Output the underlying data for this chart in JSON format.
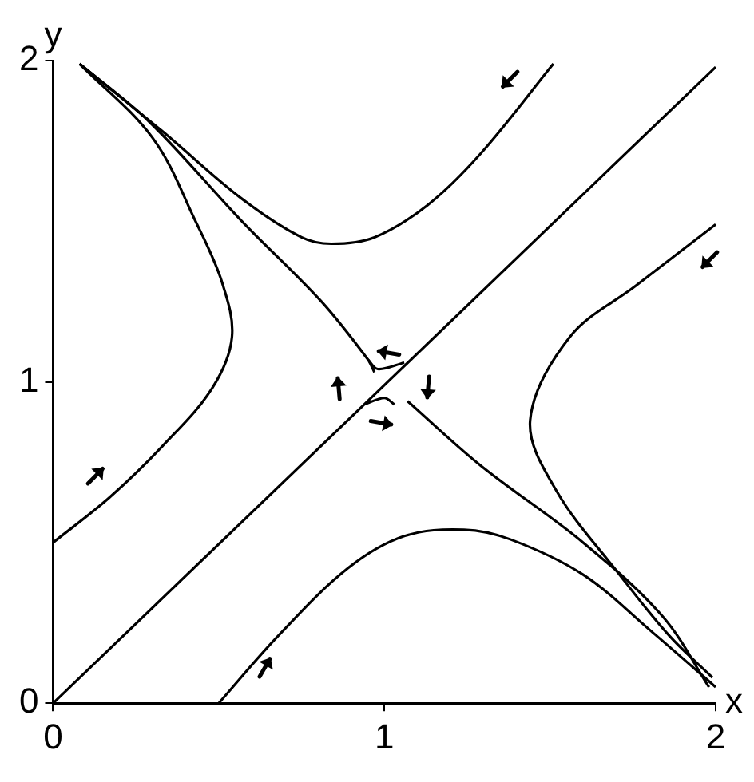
{
  "chart_data": {
    "type": "line",
    "xlabel": "x",
    "ylabel": "y",
    "xlim": [
      0,
      2
    ],
    "ylim": [
      0,
      2
    ],
    "xticks": [
      0,
      1,
      2
    ],
    "yticks": [
      0,
      1,
      2
    ],
    "grid": false,
    "legend": false,
    "marker": "none",
    "line_style": "solid",
    "series": [
      {
        "color": "#000000",
        "x": [
          0,
          2
        ],
        "values": [
          0,
          1.98
        ]
      },
      {
        "color": "#000000",
        "x": [
          0.08,
          0.29,
          0.57,
          0.81,
          0.95,
          0.97
        ],
        "values": [
          1.99,
          1.81,
          1.5,
          1.25,
          1.07,
          1.03
        ]
      },
      {
        "color": "#000000",
        "x": [
          1.07,
          1.29,
          1.6,
          1.84,
          1.98
        ],
        "values": [
          0.94,
          0.74,
          0.5,
          0.27,
          0.05
        ]
      },
      {
        "color": "#000000",
        "x": [
          0.08,
          0.33,
          0.57,
          0.75,
          0.84,
          0.97,
          1.13,
          1.29,
          1.51
        ],
        "values": [
          1.99,
          1.78,
          1.57,
          1.45,
          1.43,
          1.45,
          1.55,
          1.71,
          1.99
        ]
      },
      {
        "color": "#000000",
        "x": [
          0,
          0.17,
          0.33,
          0.48,
          0.54,
          0.51,
          0.43,
          0.3,
          0.08
        ],
        "values": [
          0.5,
          0.64,
          0.8,
          0.98,
          1.14,
          1.31,
          1.5,
          1.76,
          1.99
        ]
      },
      {
        "color": "#000000",
        "x": [
          2,
          1.76,
          1.56,
          1.44,
          1.52,
          1.71,
          1.86,
          1.99
        ],
        "values": [
          1.49,
          1.3,
          1.14,
          0.88,
          0.66,
          0.4,
          0.21,
          0.08
        ]
      },
      {
        "color": "#000000",
        "x": [
          0.5,
          0.68,
          0.89,
          1.06,
          1.24,
          1.38,
          1.6,
          1.81,
          2
        ],
        "values": [
          0,
          0.21,
          0.42,
          0.52,
          0.54,
          0.51,
          0.4,
          0.22,
          0.05
        ]
      },
      {
        "color": "#000000",
        "x": [
          0.95,
          0.98,
          1.06
        ],
        "values": [
          1.07,
          1.04,
          1.06
        ]
      },
      {
        "color": "#000000",
        "x": [
          0.94,
          1.0,
          1.03
        ],
        "values": [
          0.93,
          0.95,
          0.93
        ]
      }
    ]
  }
}
